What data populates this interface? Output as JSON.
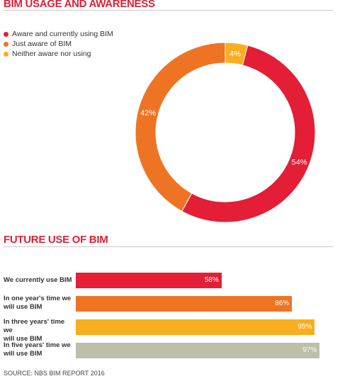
{
  "chart_data": [
    {
      "type": "pie",
      "title": "BIM USAGE AND AWARENESS",
      "legend_position": "top-left",
      "slices": [
        {
          "label": "Aware and currently using BIM",
          "value": 54,
          "display": "54%",
          "color": "#e31e36"
        },
        {
          "label": "Just aware of BIM",
          "value": 42,
          "display": "42%",
          "color": "#ee7423"
        },
        {
          "label": "Neither aware nor using",
          "value": 4,
          "display": "4%",
          "color": "#f8ae1d"
        }
      ]
    },
    {
      "type": "bar",
      "orientation": "horizontal",
      "title": "FUTURE USE OF BIM",
      "xlim": [
        0,
        100
      ],
      "categories": [
        {
          "line1": "We currently use BIM",
          "line2": ""
        },
        {
          "line1": "In one year's time we",
          "line2": "will use BIM"
        },
        {
          "line1": "In three years' time we",
          "line2": "will use BIM"
        },
        {
          "line1": "In five years' time we",
          "line2": "will use BIM"
        }
      ],
      "values": [
        58,
        86,
        95,
        97
      ],
      "value_labels": [
        "58%",
        "86%",
        "95%",
        "97%"
      ],
      "colors": [
        "#e31e36",
        "#ee7423",
        "#f8ae1d",
        "#bdbfa8"
      ]
    }
  ],
  "source": "SOURCE: NBS BIM REPORT 2016"
}
